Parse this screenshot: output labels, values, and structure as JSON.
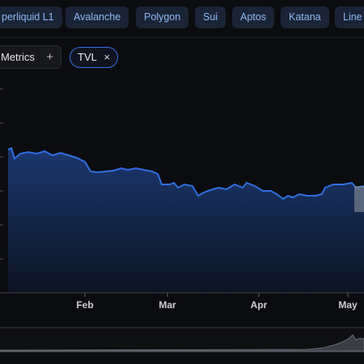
{
  "chains": [
    "perliquid L1",
    "Avalanche",
    "Polygon",
    "Sui",
    "Aptos",
    "Katana",
    "Line"
  ],
  "metrics_button": {
    "label": "Metrics",
    "icon": "+"
  },
  "metric_chip": {
    "label": "TVL",
    "icon": "×"
  },
  "x_axis_labels": [
    "Feb",
    "Mar",
    "Apr",
    "May"
  ]
}
